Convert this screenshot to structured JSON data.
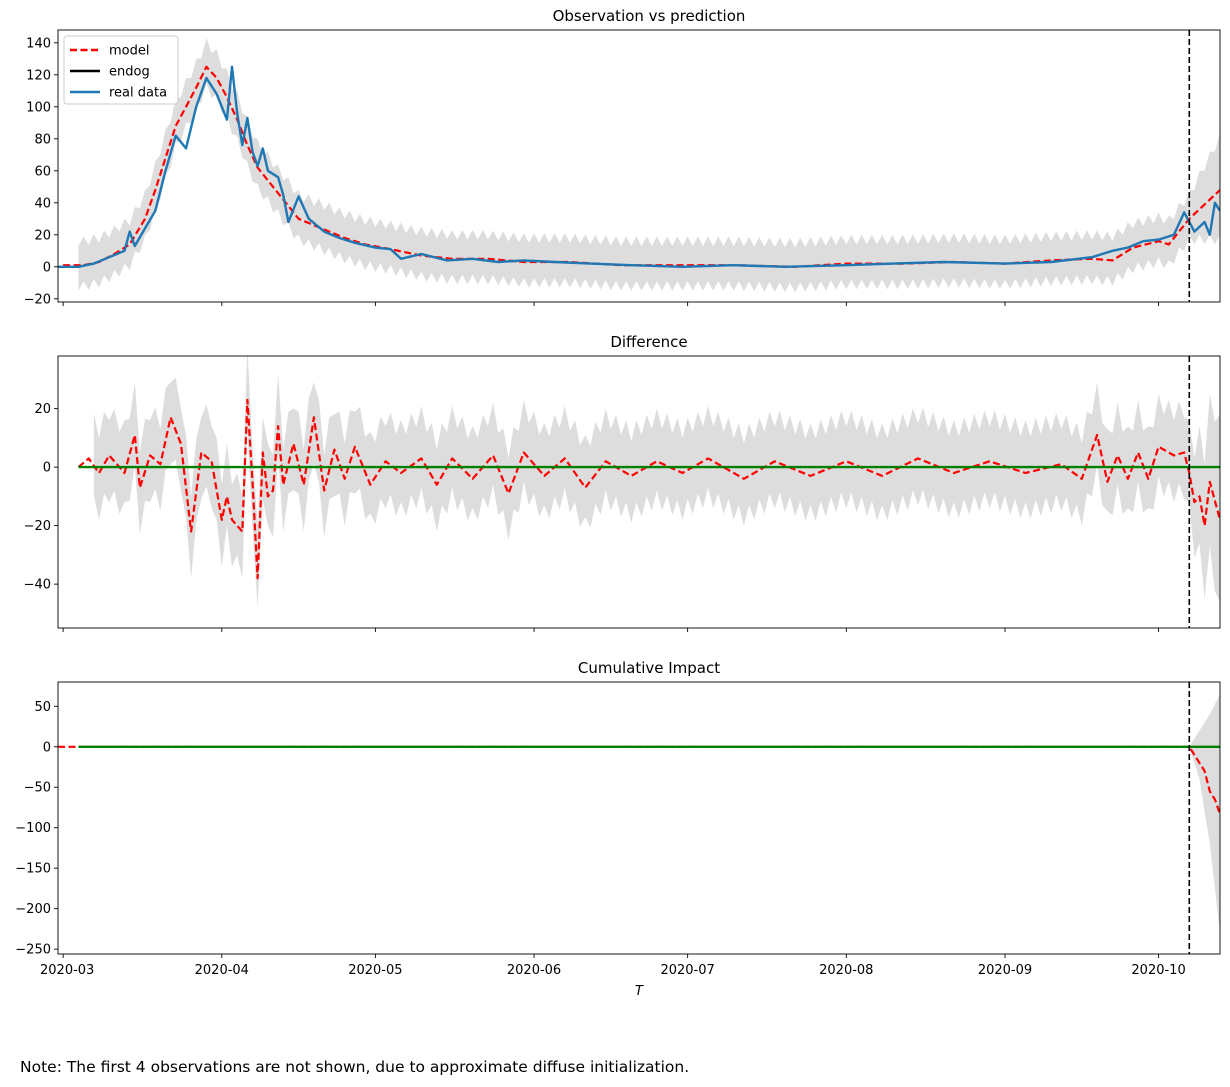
{
  "note": "Note: The first 4 observations are not shown, due to approximate diffuse initialization.",
  "xlabel": "T",
  "x_tick_labels": [
    "2020-03",
    "2020-04",
    "2020-05",
    "2020-06",
    "2020-07",
    "2020-08",
    "2020-09",
    "2020-10"
  ],
  "colors": {
    "model": "#ff0000",
    "endog": "#000000",
    "real_data": "#1f77b4",
    "zero_line": "#008000",
    "band": "#dddddd",
    "intervention": "#000000"
  },
  "chart_data": [
    {
      "type": "line",
      "title": "Observation vs prediction",
      "x_range": [
        "2020-02-29",
        "2020-10-13"
      ],
      "ylim": [
        -22,
        148
      ],
      "y_ticks": [
        -20,
        0,
        20,
        40,
        60,
        80,
        100,
        120,
        140
      ],
      "intervention_date": "2020-10-07",
      "legend": {
        "placement": "top-left",
        "entries": [
          "model",
          "endog",
          "real data"
        ]
      },
      "series": [
        {
          "name": "model",
          "style": "dashed",
          "color": "#ff0000",
          "points": [
            [
              "2020-03-01",
              1
            ],
            [
              "2020-03-05",
              1
            ],
            [
              "2020-03-08",
              3
            ],
            [
              "2020-03-11",
              8
            ],
            [
              "2020-03-14",
              14
            ],
            [
              "2020-03-17",
              30
            ],
            [
              "2020-03-19",
              48
            ],
            [
              "2020-03-21",
              68
            ],
            [
              "2020-03-23",
              88
            ],
            [
              "2020-03-25",
              100
            ],
            [
              "2020-03-27",
              112
            ],
            [
              "2020-03-29",
              125
            ],
            [
              "2020-03-31",
              118
            ],
            [
              "2020-04-02",
              106
            ],
            [
              "2020-04-04",
              92
            ],
            [
              "2020-04-06",
              76
            ],
            [
              "2020-04-08",
              62
            ],
            [
              "2020-04-10",
              54
            ],
            [
              "2020-04-12",
              46
            ],
            [
              "2020-04-14",
              38
            ],
            [
              "2020-04-16",
              30
            ],
            [
              "2020-04-19",
              26
            ],
            [
              "2020-04-22",
              22
            ],
            [
              "2020-04-25",
              18
            ],
            [
              "2020-04-29",
              14
            ],
            [
              "2020-05-04",
              11
            ],
            [
              "2020-05-10",
              7
            ],
            [
              "2020-05-16",
              5
            ],
            [
              "2020-05-23",
              5
            ],
            [
              "2020-05-30",
              3
            ],
            [
              "2020-06-08",
              3
            ],
            [
              "2020-06-18",
              1
            ],
            [
              "2020-06-28",
              1
            ],
            [
              "2020-07-10",
              1
            ],
            [
              "2020-07-22",
              0
            ],
            [
              "2020-08-01",
              2
            ],
            [
              "2020-08-12",
              2
            ],
            [
              "2020-08-22",
              3
            ],
            [
              "2020-09-01",
              2
            ],
            [
              "2020-09-10",
              4
            ],
            [
              "2020-09-18",
              5
            ],
            [
              "2020-09-22",
              4
            ],
            [
              "2020-09-26",
              12
            ],
            [
              "2020-10-01",
              16
            ],
            [
              "2020-10-03",
              14
            ],
            [
              "2020-10-05",
              22
            ],
            [
              "2020-10-07",
              30
            ],
            [
              "2020-10-09",
              36
            ],
            [
              "2020-10-11",
              42
            ],
            [
              "2020-10-13",
              48
            ]
          ]
        },
        {
          "name": "real data",
          "style": "solid",
          "color": "#1f77b4",
          "points": [
            [
              "2020-02-29",
              0
            ],
            [
              "2020-03-04",
              0
            ],
            [
              "2020-03-07",
              2
            ],
            [
              "2020-03-10",
              6
            ],
            [
              "2020-03-13",
              10
            ],
            [
              "2020-03-14",
              22
            ],
            [
              "2020-03-15",
              13
            ],
            [
              "2020-03-17",
              24
            ],
            [
              "2020-03-19",
              35
            ],
            [
              "2020-03-21",
              60
            ],
            [
              "2020-03-23",
              82
            ],
            [
              "2020-03-25",
              74
            ],
            [
              "2020-03-27",
              100
            ],
            [
              "2020-03-29",
              118
            ],
            [
              "2020-03-31",
              108
            ],
            [
              "2020-04-02",
              92
            ],
            [
              "2020-04-03",
              125
            ],
            [
              "2020-04-04",
              96
            ],
            [
              "2020-04-05",
              76
            ],
            [
              "2020-04-06",
              93
            ],
            [
              "2020-04-07",
              72
            ],
            [
              "2020-04-08",
              63
            ],
            [
              "2020-04-09",
              74
            ],
            [
              "2020-04-10",
              60
            ],
            [
              "2020-04-12",
              56
            ],
            [
              "2020-04-13",
              45
            ],
            [
              "2020-04-14",
              28
            ],
            [
              "2020-04-16",
              44
            ],
            [
              "2020-04-18",
              30
            ],
            [
              "2020-04-21",
              22
            ],
            [
              "2020-04-24",
              18
            ],
            [
              "2020-04-27",
              15
            ],
            [
              "2020-05-01",
              12
            ],
            [
              "2020-05-04",
              11
            ],
            [
              "2020-05-06",
              5
            ],
            [
              "2020-05-10",
              8
            ],
            [
              "2020-05-15",
              4
            ],
            [
              "2020-05-20",
              5
            ],
            [
              "2020-05-25",
              3
            ],
            [
              "2020-05-30",
              4
            ],
            [
              "2020-06-05",
              3
            ],
            [
              "2020-06-12",
              2
            ],
            [
              "2020-06-20",
              1
            ],
            [
              "2020-06-30",
              0
            ],
            [
              "2020-07-10",
              1
            ],
            [
              "2020-07-20",
              0
            ],
            [
              "2020-08-01",
              1
            ],
            [
              "2020-08-10",
              2
            ],
            [
              "2020-08-20",
              3
            ],
            [
              "2020-09-01",
              2
            ],
            [
              "2020-09-10",
              3
            ],
            [
              "2020-09-18",
              6
            ],
            [
              "2020-09-22",
              10
            ],
            [
              "2020-09-25",
              12
            ],
            [
              "2020-09-28",
              16
            ],
            [
              "2020-10-01",
              17
            ],
            [
              "2020-10-04",
              20
            ],
            [
              "2020-10-06",
              34
            ],
            [
              "2020-10-08",
              22
            ],
            [
              "2020-10-10",
              28
            ],
            [
              "2020-10-11",
              20
            ],
            [
              "2020-10-12",
              40
            ],
            [
              "2020-10-13",
              35
            ]
          ]
        }
      ],
      "band": {
        "upper_offset": 14,
        "lower_offset": 14
      }
    },
    {
      "type": "line",
      "title": "Difference",
      "x_range": [
        "2020-02-29",
        "2020-10-13"
      ],
      "ylim": [
        -55,
        38
      ],
      "y_ticks": [
        -40,
        -20,
        0,
        20
      ],
      "intervention_date": "2020-10-07",
      "series": [
        {
          "name": "",
          "style": "dashed",
          "color": "#ff0000",
          "points": [
            [
              "2020-03-04",
              0
            ],
            [
              "2020-03-06",
              3
            ],
            [
              "2020-03-08",
              -2
            ],
            [
              "2020-03-10",
              4
            ],
            [
              "2020-03-13",
              -2
            ],
            [
              "2020-03-15",
              11
            ],
            [
              "2020-03-16",
              -7
            ],
            [
              "2020-03-18",
              4
            ],
            [
              "2020-03-20",
              1
            ],
            [
              "2020-03-22",
              17
            ],
            [
              "2020-03-24",
              8
            ],
            [
              "2020-03-26",
              -22
            ],
            [
              "2020-03-28",
              5
            ],
            [
              "2020-03-30",
              2
            ],
            [
              "2020-04-01",
              -18
            ],
            [
              "2020-04-02",
              -10
            ],
            [
              "2020-04-03",
              -18
            ],
            [
              "2020-04-05",
              -22
            ],
            [
              "2020-04-06",
              23
            ],
            [
              "2020-04-07",
              -5
            ],
            [
              "2020-04-08",
              -38
            ],
            [
              "2020-04-09",
              5
            ],
            [
              "2020-04-10",
              -10
            ],
            [
              "2020-04-11",
              -8
            ],
            [
              "2020-04-12",
              14
            ],
            [
              "2020-04-13",
              -6
            ],
            [
              "2020-04-15",
              8
            ],
            [
              "2020-04-17",
              -6
            ],
            [
              "2020-04-19",
              17
            ],
            [
              "2020-04-21",
              -8
            ],
            [
              "2020-04-23",
              6
            ],
            [
              "2020-04-25",
              -4
            ],
            [
              "2020-04-27",
              7
            ],
            [
              "2020-04-30",
              -6
            ],
            [
              "2020-05-03",
              2
            ],
            [
              "2020-05-06",
              -2
            ],
            [
              "2020-05-10",
              3
            ],
            [
              "2020-05-13",
              -6
            ],
            [
              "2020-05-16",
              3
            ],
            [
              "2020-05-20",
              -4
            ],
            [
              "2020-05-24",
              4
            ],
            [
              "2020-05-27",
              -9
            ],
            [
              "2020-05-30",
              5
            ],
            [
              "2020-06-03",
              -3
            ],
            [
              "2020-06-07",
              3
            ],
            [
              "2020-06-11",
              -7
            ],
            [
              "2020-06-15",
              2
            ],
            [
              "2020-06-20",
              -3
            ],
            [
              "2020-06-25",
              2
            ],
            [
              "2020-06-30",
              -2
            ],
            [
              "2020-07-05",
              3
            ],
            [
              "2020-07-12",
              -4
            ],
            [
              "2020-07-18",
              2
            ],
            [
              "2020-07-25",
              -3
            ],
            [
              "2020-08-01",
              2
            ],
            [
              "2020-08-08",
              -3
            ],
            [
              "2020-08-15",
              3
            ],
            [
              "2020-08-22",
              -2
            ],
            [
              "2020-08-29",
              2
            ],
            [
              "2020-09-05",
              -2
            ],
            [
              "2020-09-12",
              1
            ],
            [
              "2020-09-16",
              -4
            ],
            [
              "2020-09-19",
              11
            ],
            [
              "2020-09-21",
              -5
            ],
            [
              "2020-09-23",
              4
            ],
            [
              "2020-09-25",
              -4
            ],
            [
              "2020-09-27",
              5
            ],
            [
              "2020-09-29",
              -4
            ],
            [
              "2020-10-01",
              7
            ],
            [
              "2020-10-04",
              4
            ],
            [
              "2020-10-06",
              5
            ],
            [
              "2020-10-07",
              -2
            ],
            [
              "2020-10-08",
              -12
            ],
            [
              "2020-10-09",
              -10
            ],
            [
              "2020-10-10",
              -20
            ],
            [
              "2020-10-11",
              -5
            ],
            [
              "2020-10-13",
              -18
            ]
          ]
        },
        {
          "name": "",
          "style": "solid",
          "color": "#008000",
          "points": [
            [
              "2020-03-04",
              0
            ],
            [
              "2020-10-13",
              0
            ]
          ]
        }
      ],
      "band": {
        "upper_offset": 14,
        "lower_offset": 14
      }
    },
    {
      "type": "line",
      "title": "Cumulative Impact",
      "x_range": [
        "2020-02-29",
        "2020-10-13"
      ],
      "ylim": [
        -256,
        80
      ],
      "y_ticks": [
        -250,
        -200,
        -150,
        -100,
        -50,
        0,
        50
      ],
      "intervention_date": "2020-10-07",
      "series": [
        {
          "name": "",
          "style": "dashed",
          "color": "#ff0000",
          "points": [
            [
              "2020-02-29",
              0
            ],
            [
              "2020-10-07",
              0
            ],
            [
              "2020-10-08",
              -10
            ],
            [
              "2020-10-10",
              -30
            ],
            [
              "2020-10-11",
              -55
            ],
            [
              "2020-10-12",
              -65
            ],
            [
              "2020-10-13",
              -83
            ]
          ]
        },
        {
          "name": "",
          "style": "solid",
          "color": "#008000",
          "points": [
            [
              "2020-03-04",
              0
            ],
            [
              "2020-10-13",
              0
            ]
          ]
        }
      ],
      "band_post": [
        [
          "2020-10-07",
          0,
          0
        ],
        [
          "2020-10-09",
          20,
          -40
        ],
        [
          "2020-10-11",
          40,
          -120
        ],
        [
          "2020-10-13",
          65,
          -230
        ]
      ]
    }
  ]
}
